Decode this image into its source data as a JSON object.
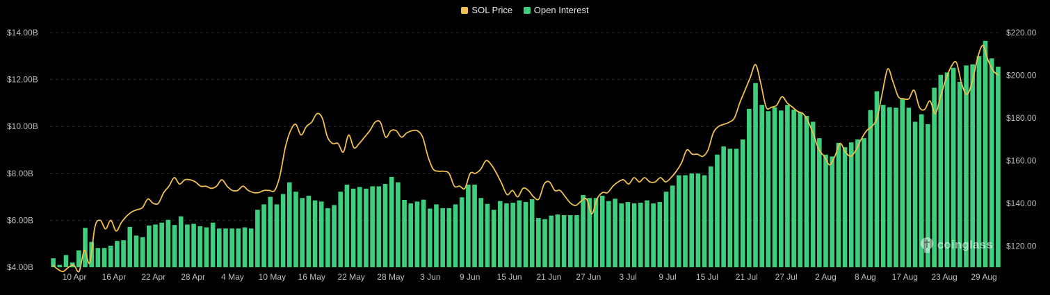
{
  "legend": {
    "price_label": "SOL Price",
    "oi_label": "Open Interest"
  },
  "colors": {
    "price": "#f0c050",
    "oi": "#3ecf7e",
    "grid": "#2f2f2f",
    "background": "#000000"
  },
  "watermark": {
    "text": "coinglass",
    "icon": "coinglass-logo-icon"
  },
  "chart_data": {
    "type": "bar-line",
    "title": "",
    "x_tick_labels": [
      "10 Apr",
      "16 Apr",
      "22 Apr",
      "28 Apr",
      "4 May",
      "10 May",
      "16 May",
      "22 May",
      "28 May",
      "3 Jun",
      "9 Jun",
      "15 Jun",
      "21 Jun",
      "27 Jun",
      "3 Jul",
      "9 Jul",
      "15 Jul",
      "21 Jul",
      "27 Jul",
      "2 Aug",
      "8 Aug",
      "17 Aug",
      "23 Aug",
      "29 Aug"
    ],
    "y_left": {
      "label": "",
      "ticks": [
        "$4.00B",
        "$6.00B",
        "$8.00B",
        "$10.00B",
        "$12.00B",
        "$14.00B"
      ],
      "range": [
        4,
        14
      ]
    },
    "y_right": {
      "label": "",
      "ticks": [
        "$120.00",
        "$140.00",
        "$160.00",
        "$180.00",
        "$200.00",
        "$220.00"
      ],
      "range": [
        110,
        220
      ]
    },
    "grid": true,
    "legend_position": "top-center",
    "series": [
      {
        "name": "Open Interest",
        "type": "bar",
        "axis": "left",
        "unit": "$B",
        "values": [
          4.38,
          4.1,
          4.52,
          4.2,
          4.72,
          5.68,
          5.08,
          4.82,
          4.82,
          4.92,
          5.12,
          5.15,
          5.72,
          5.35,
          5.28,
          5.78,
          5.82,
          5.9,
          6.02,
          5.8,
          6.17,
          5.82,
          5.85,
          5.75,
          5.7,
          5.9,
          5.65,
          5.65,
          5.65,
          5.65,
          5.7,
          5.65,
          6.45,
          6.68,
          7.0,
          6.68,
          7.12,
          7.62,
          7.22,
          6.95,
          7.05,
          6.85,
          6.8,
          6.52,
          6.65,
          7.22,
          7.52,
          7.35,
          7.42,
          7.35,
          7.45,
          7.45,
          7.55,
          7.85,
          7.62,
          6.87,
          6.72,
          6.8,
          6.88,
          6.5,
          6.68,
          6.52,
          6.52,
          6.68,
          6.98,
          7.52,
          7.52,
          6.95,
          6.7,
          6.45,
          6.82,
          6.72,
          6.75,
          6.85,
          6.78,
          6.9,
          6.1,
          6.05,
          6.2,
          6.25,
          6.22,
          6.22,
          6.22,
          7.08,
          6.95,
          6.95,
          7.05,
          6.82,
          6.92,
          6.72,
          6.78,
          6.72,
          6.75,
          6.85,
          6.72,
          6.78,
          7.22,
          7.48,
          7.92,
          7.92,
          8.0,
          8.0,
          7.92,
          8.3,
          8.8,
          9.15,
          9.05,
          9.05,
          9.45,
          10.75,
          11.85,
          10.92,
          10.65,
          10.82,
          10.68,
          10.92,
          10.72,
          10.6,
          10.45,
          10.2,
          9.5,
          8.8,
          8.72,
          9.3,
          9.12,
          9.32,
          9.45,
          9.5,
          10.7,
          11.5,
          10.92,
          10.82,
          10.8,
          11.2,
          10.8,
          10.2,
          10.52,
          10.1,
          11.65,
          12.2,
          12.3,
          12.5,
          11.9,
          12.6,
          12.65,
          13.0,
          13.65,
          12.9,
          12.55
        ]
      },
      {
        "name": "SOL Price",
        "type": "line",
        "axis": "right",
        "unit": "$",
        "values": [
          111,
          109,
          108,
          110,
          111,
          108,
          118,
          112,
          129,
          132,
          128,
          132,
          127,
          131,
          134,
          136,
          137,
          138,
          142,
          140,
          140,
          145,
          148,
          152,
          149,
          151,
          151,
          150,
          148,
          148,
          147,
          148,
          151,
          148,
          146,
          146,
          148,
          146,
          145,
          145,
          146,
          146,
          146,
          153,
          166,
          174,
          177,
          172,
          176,
          178,
          182,
          180,
          171,
          168,
          168,
          164,
          172,
          166,
          168,
          171,
          174,
          178,
          178,
          171,
          174,
          174,
          171,
          173,
          174,
          174,
          171,
          162,
          156,
          155,
          155,
          154,
          148,
          148,
          147,
          154,
          154,
          156,
          160,
          158,
          154,
          149,
          144,
          146,
          143,
          147,
          146,
          143,
          142,
          149,
          150,
          146,
          146,
          143,
          140,
          139,
          141,
          142,
          135,
          142,
          145,
          145,
          148,
          150,
          151,
          149,
          152,
          150,
          152,
          150,
          150,
          152,
          150,
          152,
          155,
          159,
          165,
          163,
          163,
          162,
          165,
          173,
          176,
          177,
          178,
          180,
          187,
          193,
          199,
          205,
          196,
          185,
          185,
          186,
          190,
          187,
          185,
          183,
          182,
          178,
          172,
          165,
          162,
          158,
          162,
          168,
          164,
          162,
          165,
          170,
          174,
          176,
          180,
          192,
          203,
          197,
          190,
          189,
          189,
          193,
          185,
          184,
          188,
          182,
          190,
          198,
          204,
          206,
          196,
          191,
          197,
          208,
          214,
          207,
          202,
          200
        ]
      }
    ]
  }
}
